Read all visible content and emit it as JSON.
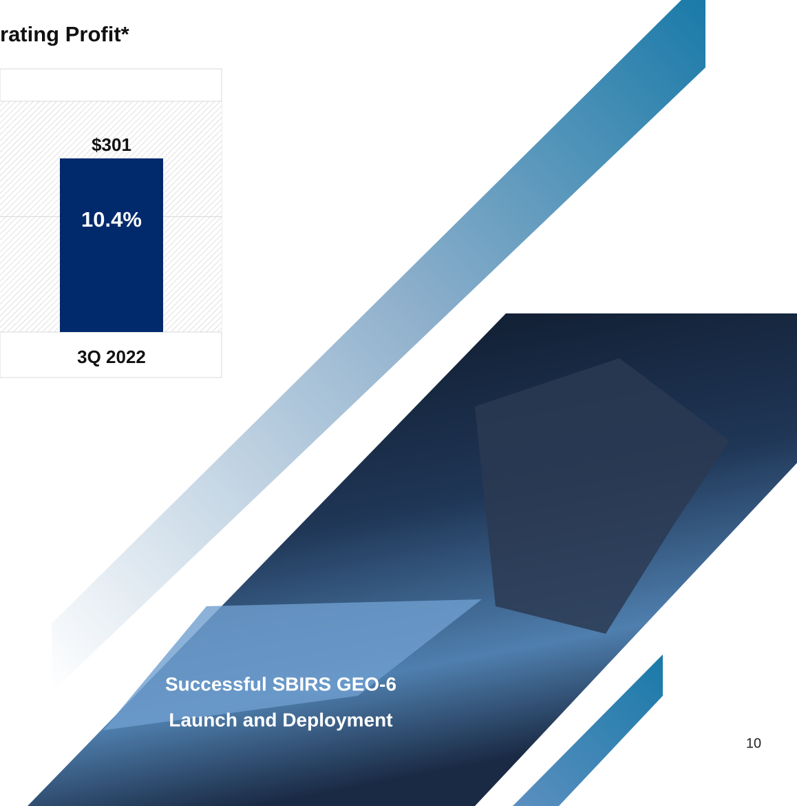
{
  "chart_data": {
    "type": "bar",
    "title": "rating Profit*",
    "categories": [
      "3Q 2022"
    ],
    "values": [
      301
    ],
    "value_labels": [
      "$301"
    ],
    "annotations": [
      "10.4%"
    ],
    "color": "#002a6c",
    "ylim": [
      0,
      400
    ],
    "yticks": [
      0,
      200,
      400
    ],
    "grid": true
  },
  "caption": [
    "Successful SBIRS GEO-6",
    "Launch and Deployment"
  ],
  "page_number": "10"
}
